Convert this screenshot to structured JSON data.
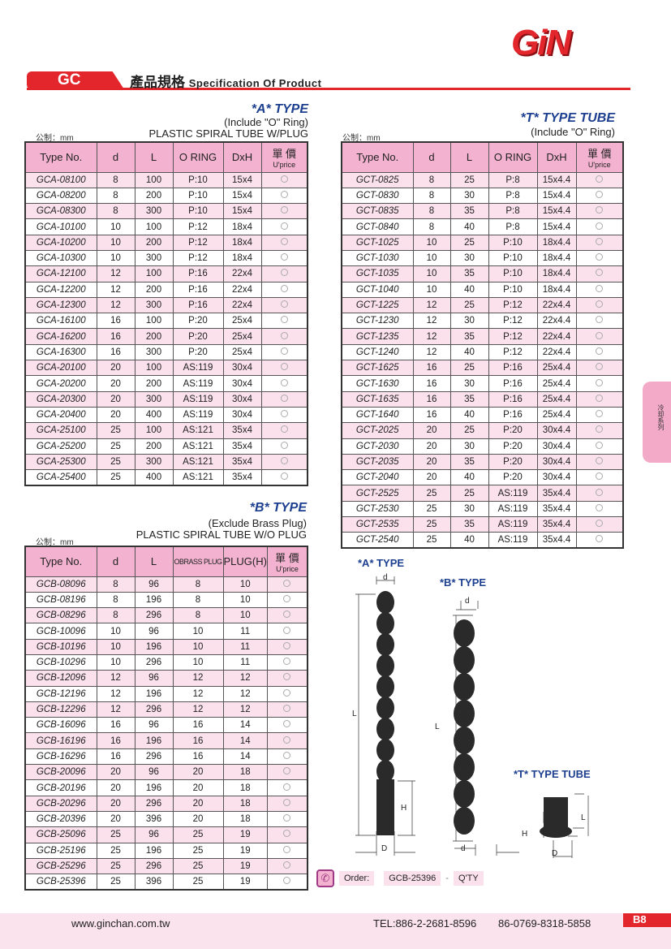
{
  "header": {
    "logo": "GiN",
    "series": "GC",
    "title_cn": "產品規格",
    "title_en": "Specification Of Product"
  },
  "side_tab": "冷却系列",
  "colors": {
    "brand_red": "#e3262c",
    "header_pink": "#f3b3d0",
    "type_blue": "#1d3f8f"
  },
  "table_a": {
    "type": "*A* TYPE",
    "sub1": "(Include \"O\" Ring)",
    "sub2": "PLASTIC SPIRAL TUBE W/PLUG",
    "unit": "公制：mm",
    "headers": [
      "Type No.",
      "d",
      "L",
      "O RING",
      "DxH",
      "單 價",
      "U'price"
    ],
    "rows": [
      [
        "GCA-08100",
        "8",
        "100",
        "P:10",
        "15x4"
      ],
      [
        "GCA-08200",
        "8",
        "200",
        "P:10",
        "15x4"
      ],
      [
        "GCA-08300",
        "8",
        "300",
        "P:10",
        "15x4"
      ],
      [
        "GCA-10100",
        "10",
        "100",
        "P:12",
        "18x4"
      ],
      [
        "GCA-10200",
        "10",
        "200",
        "P:12",
        "18x4"
      ],
      [
        "GCA-10300",
        "10",
        "300",
        "P:12",
        "18x4"
      ],
      [
        "GCA-12100",
        "12",
        "100",
        "P:16",
        "22x4"
      ],
      [
        "GCA-12200",
        "12",
        "200",
        "P:16",
        "22x4"
      ],
      [
        "GCA-12300",
        "12",
        "300",
        "P:16",
        "22x4"
      ],
      [
        "GCA-16100",
        "16",
        "100",
        "P:20",
        "25x4"
      ],
      [
        "GCA-16200",
        "16",
        "200",
        "P:20",
        "25x4"
      ],
      [
        "GCA-16300",
        "16",
        "300",
        "P:20",
        "25x4"
      ],
      [
        "GCA-20100",
        "20",
        "100",
        "AS:119",
        "30x4"
      ],
      [
        "GCA-20200",
        "20",
        "200",
        "AS:119",
        "30x4"
      ],
      [
        "GCA-20300",
        "20",
        "300",
        "AS:119",
        "30x4"
      ],
      [
        "GCA-20400",
        "20",
        "400",
        "AS:119",
        "30x4"
      ],
      [
        "GCA-25100",
        "25",
        "100",
        "AS:121",
        "35x4"
      ],
      [
        "GCA-25200",
        "25",
        "200",
        "AS:121",
        "35x4"
      ],
      [
        "GCA-25300",
        "25",
        "300",
        "AS:121",
        "35x4"
      ],
      [
        "GCA-25400",
        "25",
        "400",
        "AS:121",
        "35x4"
      ]
    ]
  },
  "table_t": {
    "type": "*T* TYPE TUBE",
    "sub1": "(Include \"O\" Ring)",
    "unit": "公制：mm",
    "headers": [
      "Type No.",
      "d",
      "L",
      "O RING",
      "DxH",
      "單 價",
      "U'price"
    ],
    "rows": [
      [
        "GCT-0825",
        "8",
        "25",
        "P:8",
        "15x4.4"
      ],
      [
        "GCT-0830",
        "8",
        "30",
        "P:8",
        "15x4.4"
      ],
      [
        "GCT-0835",
        "8",
        "35",
        "P:8",
        "15x4.4"
      ],
      [
        "GCT-0840",
        "8",
        "40",
        "P:8",
        "15x4.4"
      ],
      [
        "GCT-1025",
        "10",
        "25",
        "P:10",
        "18x4.4"
      ],
      [
        "GCT-1030",
        "10",
        "30",
        "P:10",
        "18x4.4"
      ],
      [
        "GCT-1035",
        "10",
        "35",
        "P:10",
        "18x4.4"
      ],
      [
        "GCT-1040",
        "10",
        "40",
        "P:10",
        "18x4.4"
      ],
      [
        "GCT-1225",
        "12",
        "25",
        "P:12",
        "22x4.4"
      ],
      [
        "GCT-1230",
        "12",
        "30",
        "P:12",
        "22x4.4"
      ],
      [
        "GCT-1235",
        "12",
        "35",
        "P:12",
        "22x4.4"
      ],
      [
        "GCT-1240",
        "12",
        "40",
        "P:12",
        "22x4.4"
      ],
      [
        "GCT-1625",
        "16",
        "25",
        "P:16",
        "25x4.4"
      ],
      [
        "GCT-1630",
        "16",
        "30",
        "P:16",
        "25x4.4"
      ],
      [
        "GCT-1635",
        "16",
        "35",
        "P:16",
        "25x4.4"
      ],
      [
        "GCT-1640",
        "16",
        "40",
        "P:16",
        "25x4.4"
      ],
      [
        "GCT-2025",
        "20",
        "25",
        "P:20",
        "30x4.4"
      ],
      [
        "GCT-2030",
        "20",
        "30",
        "P:20",
        "30x4.4"
      ],
      [
        "GCT-2035",
        "20",
        "35",
        "P:20",
        "30x4.4"
      ],
      [
        "GCT-2040",
        "20",
        "40",
        "P:20",
        "30x4.4"
      ],
      [
        "GCT-2525",
        "25",
        "25",
        "AS:119",
        "35x4.4"
      ],
      [
        "GCT-2530",
        "25",
        "30",
        "AS:119",
        "35x4.4"
      ],
      [
        "GCT-2535",
        "25",
        "35",
        "AS:119",
        "35x4.4"
      ],
      [
        "GCT-2540",
        "25",
        "40",
        "AS:119",
        "35x4.4"
      ]
    ]
  },
  "table_b": {
    "type": "*B* TYPE",
    "sub1": "(Exclude Brass Plug)",
    "sub2": "PLASTIC SPIRAL TUBE W/O PLUG",
    "unit": "公制：mm",
    "headers": [
      "Type No.",
      "d",
      "L",
      "OBRASS PLUG",
      "PLUG(H)",
      "單 價",
      "U'price"
    ],
    "rows": [
      [
        "GCB-08096",
        "8",
        "96",
        "8",
        "10"
      ],
      [
        "GCB-08196",
        "8",
        "196",
        "8",
        "10"
      ],
      [
        "GCB-08296",
        "8",
        "296",
        "8",
        "10"
      ],
      [
        "GCB-10096",
        "10",
        "96",
        "10",
        "11"
      ],
      [
        "GCB-10196",
        "10",
        "196",
        "10",
        "11"
      ],
      [
        "GCB-10296",
        "10",
        "296",
        "10",
        "11"
      ],
      [
        "GCB-12096",
        "12",
        "96",
        "12",
        "12"
      ],
      [
        "GCB-12196",
        "12",
        "196",
        "12",
        "12"
      ],
      [
        "GCB-12296",
        "12",
        "296",
        "12",
        "12"
      ],
      [
        "GCB-16096",
        "16",
        "96",
        "16",
        "14"
      ],
      [
        "GCB-16196",
        "16",
        "196",
        "16",
        "14"
      ],
      [
        "GCB-16296",
        "16",
        "296",
        "16",
        "14"
      ],
      [
        "GCB-20096",
        "20",
        "96",
        "20",
        "18"
      ],
      [
        "GCB-20196",
        "20",
        "196",
        "20",
        "18"
      ],
      [
        "GCB-20296",
        "20",
        "296",
        "20",
        "18"
      ],
      [
        "GCB-20396",
        "20",
        "396",
        "20",
        "18"
      ],
      [
        "GCB-25096",
        "25",
        "96",
        "25",
        "19"
      ],
      [
        "GCB-25196",
        "25",
        "196",
        "25",
        "19"
      ],
      [
        "GCB-25296",
        "25",
        "296",
        "25",
        "19"
      ],
      [
        "GCB-25396",
        "25",
        "396",
        "25",
        "19"
      ]
    ]
  },
  "diagram": {
    "a_label": "*A* TYPE",
    "b_label": "*B* TYPE",
    "t_label": "*T* TYPE TUBE",
    "dim_d": "d",
    "dim_L": "L",
    "dim_H": "H",
    "dim_D": "D"
  },
  "order": {
    "label": "Order:",
    "example": "GCB-25396",
    "dash": "-",
    "qty": "Q'TY",
    "icon": "phone-icon"
  },
  "footer": {
    "website": "www.ginchan.com.tw",
    "tel": "TEL:886-2-2681-8596",
    "tel2": "86-0769-8318-5858",
    "page": "B8"
  }
}
